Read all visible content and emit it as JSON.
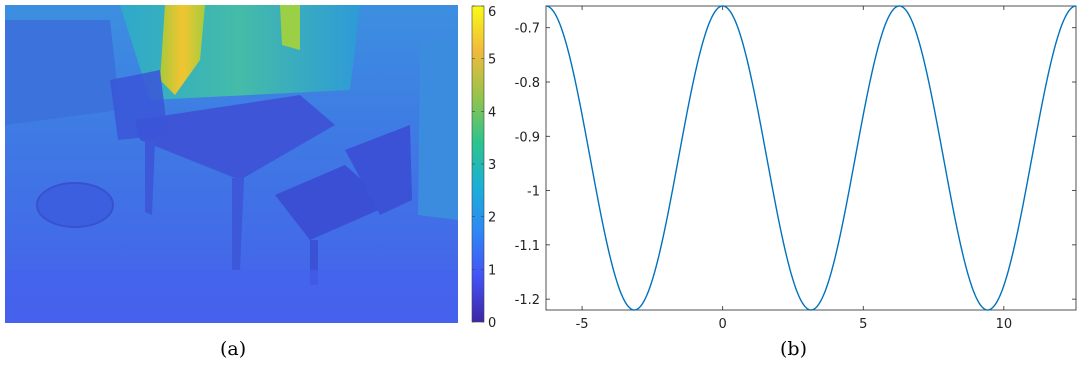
{
  "captions": {
    "a": "(a)",
    "b": "(b)"
  },
  "colorbar": {
    "ticks": [
      "0",
      "1",
      "2",
      "3",
      "4",
      "5",
      "6"
    ],
    "range": [
      0,
      6
    ],
    "colors": [
      "#3e26a8",
      "#4353f5",
      "#2e87f7",
      "#1bb0d6",
      "#2dc48c",
      "#96c44a",
      "#f0ba3c",
      "#f9fb15"
    ]
  },
  "depth_image": {
    "colors": {
      "floor": "#4466ee",
      "wall_left": "#3f7fe0",
      "wall_back": "#3aa0d2",
      "window": "#9fd03f",
      "hot": "#e6d42a",
      "table": "#3e55d8",
      "chair": "#3b50d3"
    }
  },
  "chart_data": {
    "type": "line",
    "function_note": "",
    "x_ticks": [
      "-5",
      "0",
      "5",
      "10"
    ],
    "y_ticks": [
      "-0.7",
      "-0.8",
      "-0.9",
      "-1",
      "-1.1",
      "-1.2"
    ],
    "xlim": [
      -6.2832,
      12.5664
    ],
    "ylim": [
      -1.22,
      -0.66
    ],
    "curve_min": -1.22,
    "curve_max": -0.66,
    "period": 6.2832,
    "series": [
      {
        "color": "#0072bd"
      }
    ],
    "title": "",
    "xlabel": "",
    "ylabel": ""
  }
}
